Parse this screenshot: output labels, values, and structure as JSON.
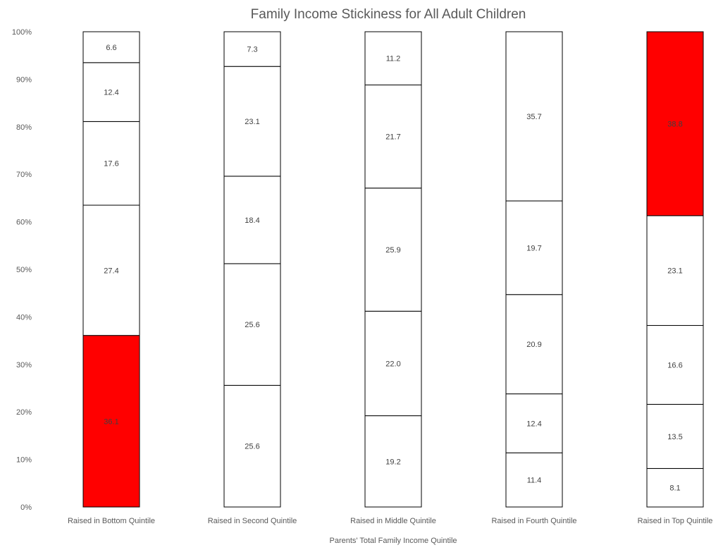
{
  "chart_data": {
    "type": "bar",
    "stacked": true,
    "title": "Family Income Stickiness for All Adult Children",
    "xlabel": "Parents' Total Family Income Quintile",
    "ylabel": "",
    "ylim": [
      0,
      100
    ],
    "y_ticks": [
      "0%",
      "10%",
      "20%",
      "30%",
      "40%",
      "50%",
      "60%",
      "70%",
      "80%",
      "90%",
      "100%"
    ],
    "categories": [
      "Raised in Bottom Quintile",
      "Raised in Second Quintile",
      "Raised in Middle Quintile",
      "Raised in Fourth Quintile",
      "Raised in Top Quintile"
    ],
    "series": [
      {
        "values": [
          36.1,
          25.6,
          19.2,
          11.4,
          8.1
        ]
      },
      {
        "values": [
          27.4,
          25.6,
          22.0,
          12.4,
          13.5
        ]
      },
      {
        "values": [
          17.6,
          18.4,
          25.9,
          20.9,
          16.6
        ]
      },
      {
        "values": [
          12.4,
          23.1,
          21.7,
          19.7,
          23.1
        ]
      },
      {
        "values": [
          6.6,
          7.3,
          11.2,
          35.7,
          38.8
        ]
      }
    ],
    "highlighted_segments": [
      {
        "category": "Raised in Bottom Quintile",
        "series_index": 0
      },
      {
        "category": "Raised in Top Quintile",
        "series_index": 4
      }
    ],
    "colors": {
      "highlight": "#ff0000",
      "default_fill": "#ffffff",
      "outline": "#000000",
      "text": "#404040",
      "title": "#595959"
    },
    "grid": false,
    "legend": "none"
  }
}
